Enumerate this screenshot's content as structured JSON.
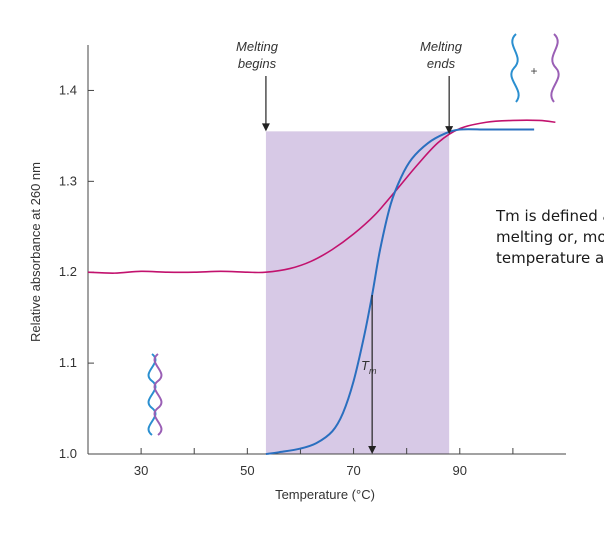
{
  "chart_data": {
    "type": "line",
    "xlabel": "Temperature (°C)",
    "ylabel": "Relative absorbance at 260 nm",
    "xlim": [
      20,
      110
    ],
    "ylim": [
      1.0,
      1.45
    ],
    "x_ticks": [
      30,
      50,
      70,
      90
    ],
    "y_ticks": [
      "1.0",
      "1.1",
      "1.2",
      "1.3",
      "1.4"
    ],
    "shaded_region": {
      "from": 53.5,
      "to": 88,
      "color": "#d7c9e6"
    },
    "series": [
      {
        "color": "#c2126e",
        "x": [
          20,
          25,
          30,
          35,
          40,
          45,
          50,
          53.5,
          58,
          62,
          66,
          70,
          74,
          78,
          82,
          86,
          90,
          95,
          100,
          105,
          108
        ],
        "y": [
          1.2,
          1.199,
          1.201,
          1.2,
          1.2,
          1.201,
          1.2,
          1.2,
          1.204,
          1.212,
          1.225,
          1.242,
          1.263,
          1.29,
          1.318,
          1.343,
          1.358,
          1.365,
          1.367,
          1.367,
          1.365
        ]
      },
      {
        "color": "#2a6fbf",
        "x": [
          53.5,
          56,
          60,
          63,
          66,
          68,
          70,
          72,
          73.5,
          75,
          77,
          79,
          81,
          84,
          87,
          90,
          95,
          100,
          104
        ],
        "y": [
          1.0,
          1.002,
          1.006,
          1.012,
          1.025,
          1.045,
          1.08,
          1.13,
          1.175,
          1.225,
          1.275,
          1.305,
          1.325,
          1.342,
          1.352,
          1.357,
          1.357,
          1.357,
          1.357
        ]
      }
    ],
    "annotations": {
      "melting_begins": {
        "line1": "Melting",
        "line2": "begins",
        "x": 53.5
      },
      "melting_ends": {
        "line1": "Melting",
        "line2": "ends",
        "x": 88
      },
      "tm": {
        "label": "T",
        "sub": "m",
        "x": 73.5,
        "y": 1.175
      },
      "plus": "+"
    }
  },
  "note": {
    "line1": "Tm is defined as the",
    "line2": "melting or, more formally,",
    "line3": "temperature at which half"
  },
  "colors": {
    "strand_blue": "#2a8fd0",
    "strand_purple": "#9a5fb5"
  }
}
